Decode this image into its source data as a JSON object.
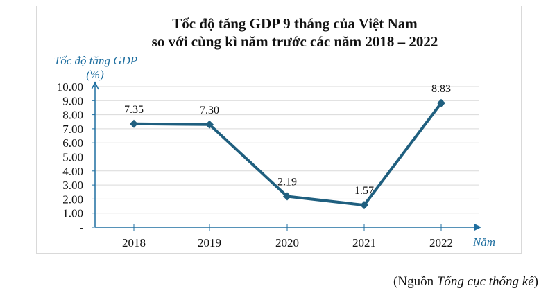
{
  "chart_data": {
    "type": "line",
    "title": "Tốc độ tăng GDP 9 tháng của Việt Nam",
    "subtitle": "so với cùng kì năm trước các năm 2018 – 2022",
    "ylabel": "Tốc độ tăng GDP",
    "ylabel_unit": "(%)",
    "xlabel": "Năm",
    "categories": [
      "2018",
      "2019",
      "2020",
      "2021",
      "2022"
    ],
    "values": [
      7.35,
      7.3,
      2.19,
      1.57,
      8.83
    ],
    "data_labels": [
      "7.35",
      "7.30",
      "2.19",
      "1.57",
      "8.83"
    ],
    "ylim": [
      0,
      10
    ],
    "y_ticks": [
      "-",
      "1.00",
      "2.00",
      "3.00",
      "4.00",
      "5.00",
      "6.00",
      "7.00",
      "8.00",
      "9.00",
      "10.00"
    ],
    "grid": true,
    "color": "#1f5f7f",
    "axis_color": "#1f6fa0"
  },
  "source": {
    "prefix": "(Nguồn ",
    "name": "Tổng cục thống kê",
    "suffix": ")"
  }
}
